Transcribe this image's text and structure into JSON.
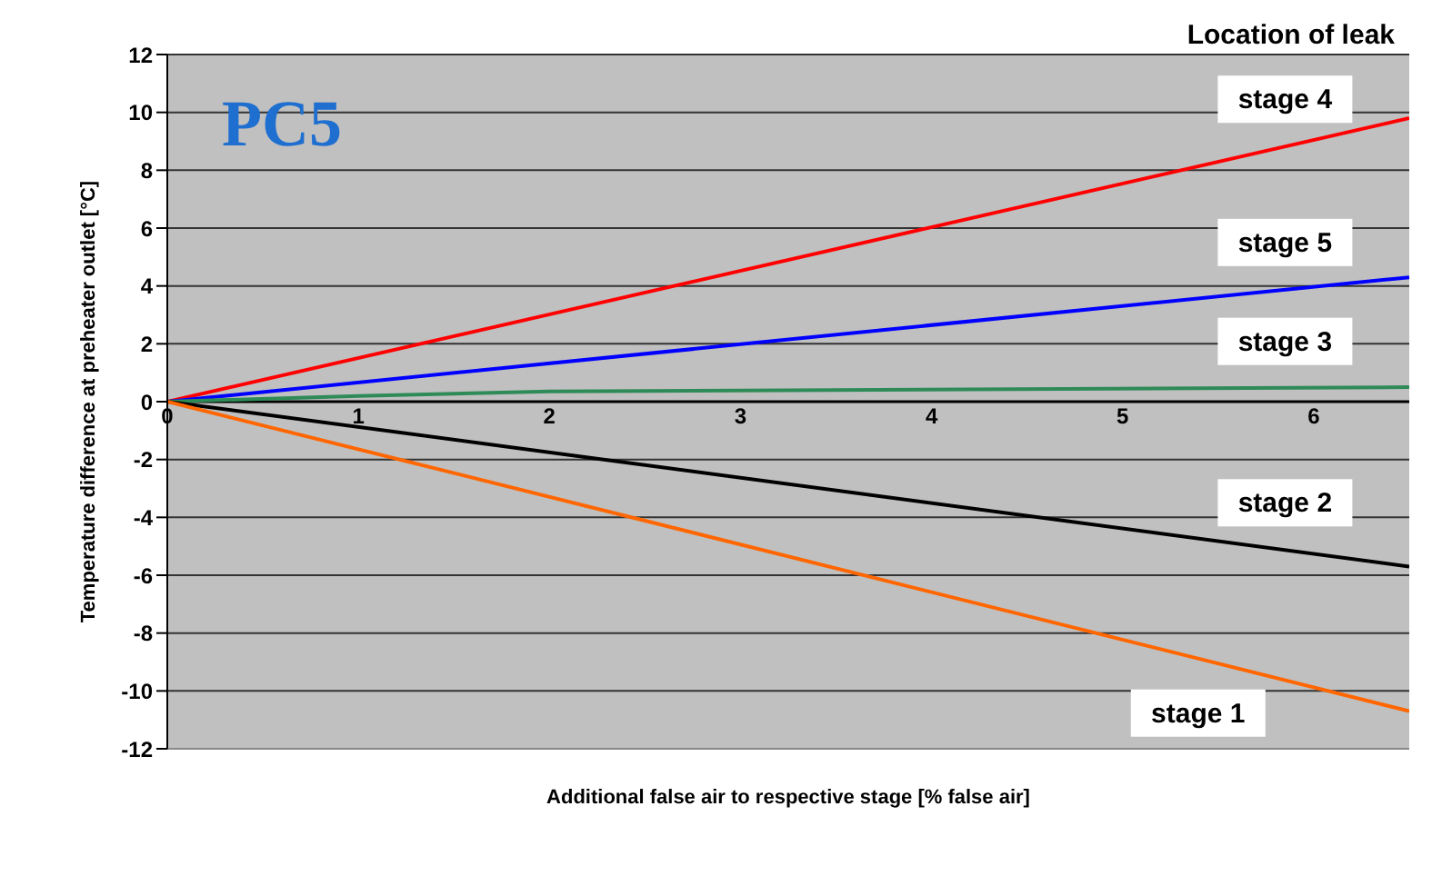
{
  "chart_data": {
    "type": "line",
    "title": "PC5",
    "legend_title": "Location of leak",
    "xlabel": "Additional false air to respective stage [%  false air]",
    "ylabel": "Temperature difference at preheater outlet [°C]",
    "series": [
      {
        "color": "#ff0000",
        "x": [
          0,
          6.5
        ],
        "values": [
          0,
          9.8
        ]
      },
      {
        "color": "#0000ff",
        "x": [
          0,
          6.5
        ],
        "values": [
          0,
          4.3
        ]
      },
      {
        "color": "#2e8b57",
        "x": [
          0,
          1,
          2,
          6.5
        ],
        "values": [
          0,
          0.2,
          0.35,
          0.5
        ]
      },
      {
        "color": "#000000",
        "x": [
          0,
          6.5
        ],
        "values": [
          0,
          -5.7
        ]
      },
      {
        "color": "#ff6600",
        "x": [
          0,
          6.5
        ],
        "values": [
          0,
          -10.7
        ]
      }
    ],
    "annotations": [
      "stage 4",
      "stage 5",
      "stage 3",
      "stage 2",
      "stage 1"
    ],
    "xlim": [
      0,
      6.5
    ],
    "xticks": [
      0,
      1,
      2,
      3,
      4,
      5,
      6
    ],
    "ylim": [
      -12,
      12
    ],
    "yticks": [
      -12,
      -10,
      -8,
      -6,
      -4,
      -2,
      0,
      2,
      4,
      6,
      8,
      10,
      12
    ],
    "grid": "y",
    "legend": false,
    "marker": "none",
    "line_style": "solid"
  }
}
